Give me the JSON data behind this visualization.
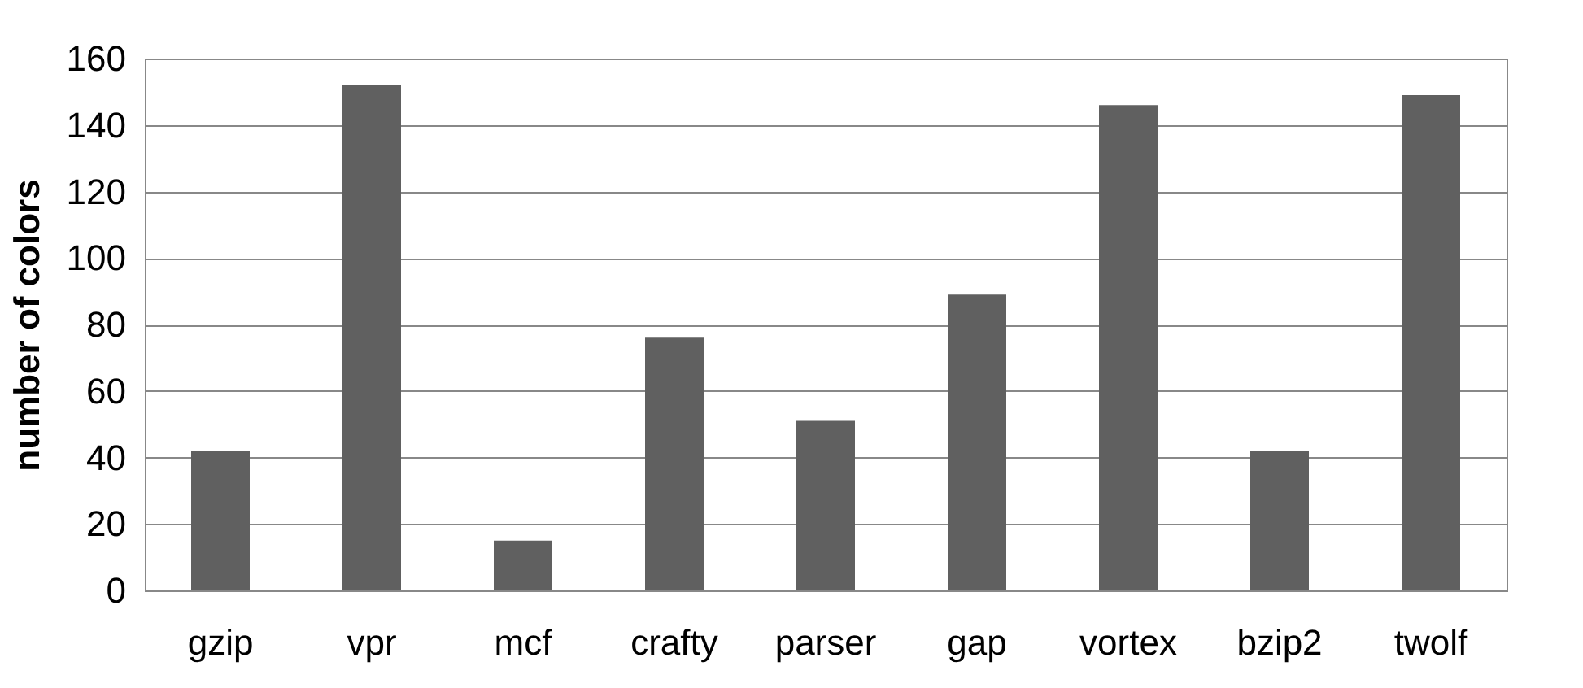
{
  "chart_data": {
    "type": "bar",
    "ylabel": "number of colors",
    "categories": [
      "gzip",
      "vpr",
      "mcf",
      "crafty",
      "parser",
      "gap",
      "vortex",
      "bzip2",
      "twolf"
    ],
    "values": [
      42,
      152,
      15,
      76,
      51,
      89,
      146,
      42,
      149
    ],
    "color": "#606060",
    "ylim": [
      0,
      160
    ],
    "yticks": [
      0,
      20,
      40,
      60,
      80,
      100,
      120,
      140,
      160
    ],
    "grid": "y"
  }
}
